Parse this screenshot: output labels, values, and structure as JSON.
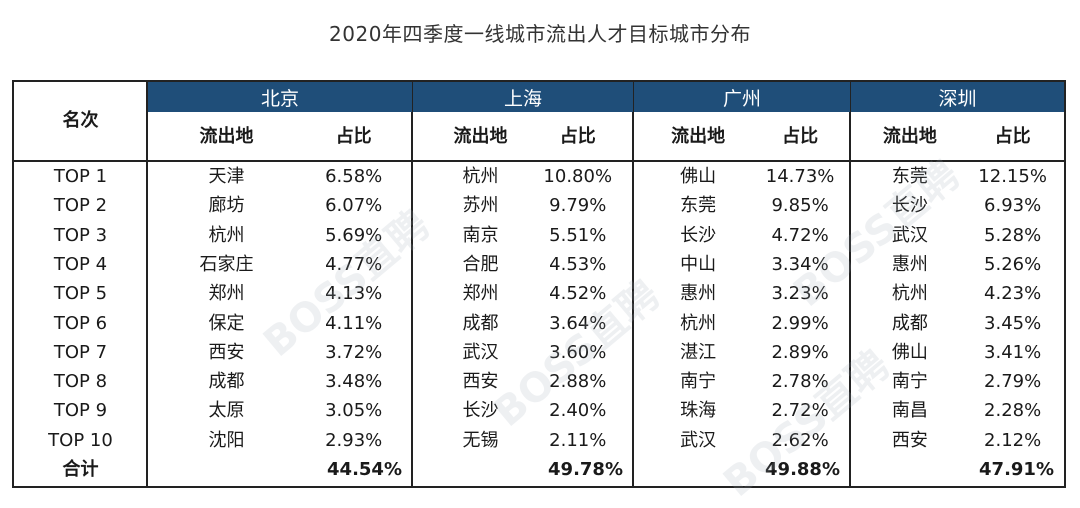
{
  "title": "2020年四季度一线城市流出人才目标城市分布",
  "watermark": "BOSS直聘",
  "rank_header": "名次",
  "col_from": "流出地",
  "col_share": "占比",
  "total_label": "合计",
  "ranks": [
    "TOP 1",
    "TOP 2",
    "TOP 3",
    "TOP 4",
    "TOP 5",
    "TOP 6",
    "TOP 7",
    "TOP 8",
    "TOP 9",
    "TOP 10"
  ],
  "cities": [
    {
      "name": "北京",
      "rows": [
        [
          "天津",
          "6.58%"
        ],
        [
          "廊坊",
          "6.07%"
        ],
        [
          "杭州",
          "5.69%"
        ],
        [
          "石家庄",
          "4.77%"
        ],
        [
          "郑州",
          "4.13%"
        ],
        [
          "保定",
          "4.11%"
        ],
        [
          "西安",
          "3.72%"
        ],
        [
          "成都",
          "3.48%"
        ],
        [
          "太原",
          "3.05%"
        ],
        [
          "沈阳",
          "2.93%"
        ]
      ],
      "total": "44.54%"
    },
    {
      "name": "上海",
      "rows": [
        [
          "杭州",
          "10.80%"
        ],
        [
          "苏州",
          "9.79%"
        ],
        [
          "南京",
          "5.51%"
        ],
        [
          "合肥",
          "4.53%"
        ],
        [
          "郑州",
          "4.52%"
        ],
        [
          "成都",
          "3.64%"
        ],
        [
          "武汉",
          "3.60%"
        ],
        [
          "西安",
          "2.88%"
        ],
        [
          "长沙",
          "2.40%"
        ],
        [
          "无锡",
          "2.11%"
        ]
      ],
      "total": "49.78%"
    },
    {
      "name": "广州",
      "rows": [
        [
          "佛山",
          "14.73%"
        ],
        [
          "东莞",
          "9.85%"
        ],
        [
          "长沙",
          "4.72%"
        ],
        [
          "中山",
          "3.34%"
        ],
        [
          "惠州",
          "3.23%"
        ],
        [
          "杭州",
          "2.99%"
        ],
        [
          "湛江",
          "2.89%"
        ],
        [
          "南宁",
          "2.78%"
        ],
        [
          "珠海",
          "2.72%"
        ],
        [
          "武汉",
          "2.62%"
        ]
      ],
      "total": "49.88%"
    },
    {
      "name": "深圳",
      "rows": [
        [
          "东莞",
          "12.15%"
        ],
        [
          "长沙",
          "6.93%"
        ],
        [
          "武汉",
          "5.28%"
        ],
        [
          "惠州",
          "5.26%"
        ],
        [
          "杭州",
          "4.23%"
        ],
        [
          "成都",
          "3.45%"
        ],
        [
          "佛山",
          "3.41%"
        ],
        [
          "南宁",
          "2.79%"
        ],
        [
          "南昌",
          "2.28%"
        ],
        [
          "西安",
          "2.12%"
        ]
      ],
      "total": "47.91%"
    }
  ],
  "colors": {
    "header_bg": "#1f4e79",
    "header_text": "#ffffff",
    "border": "#222222"
  }
}
